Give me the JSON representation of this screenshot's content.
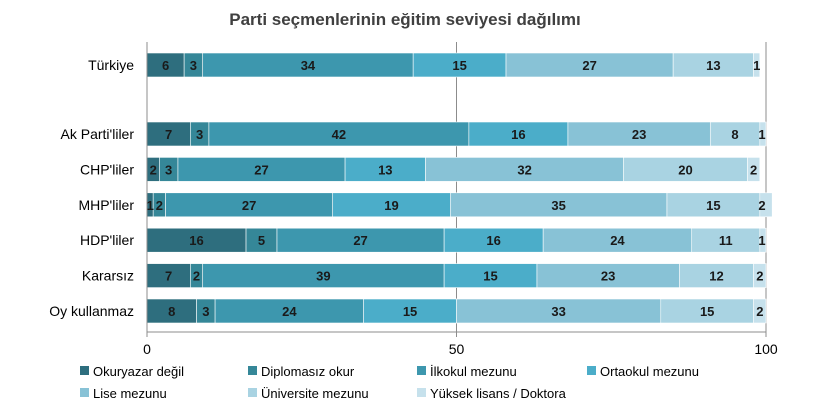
{
  "chart_data": {
    "type": "bar",
    "orientation": "horizontal",
    "stacked": true,
    "title": "Parti seçmenlerinin eğitim seviyesi dağılımı",
    "xlabel": "",
    "ylabel": "",
    "xlim": [
      0,
      100
    ],
    "xticks": [
      "0",
      "50",
      "100"
    ],
    "grid": "vertical lines at 50 and 100",
    "legend_position": "bottom",
    "categories": [
      "Türkiye",
      "Ak Parti'liler",
      "CHP'liler",
      "MHP'liler",
      "HDP'liler",
      "Kararsız",
      "Oy kullanmaz"
    ],
    "gap_after_first_category": true,
    "series": [
      {
        "name": "Okuryazar değil",
        "color": "#2E6E7E",
        "values": [
          6,
          7,
          2,
          1,
          16,
          7,
          8
        ]
      },
      {
        "name": "Diplomasız okur",
        "color": "#358798",
        "values": [
          3,
          3,
          3,
          2,
          5,
          2,
          3
        ]
      },
      {
        "name": "İlkokul mezunu",
        "color": "#3D97AE",
        "values": [
          34,
          42,
          27,
          27,
          27,
          39,
          24
        ]
      },
      {
        "name": "Ortaokul mezunu",
        "color": "#4BADC9",
        "values": [
          15,
          16,
          13,
          19,
          16,
          15,
          15
        ]
      },
      {
        "name": "Lise mezunu",
        "color": "#88C2D6",
        "values": [
          27,
          23,
          32,
          35,
          24,
          23,
          33
        ]
      },
      {
        "name": "Üniversite mezunu",
        "color": "#A9D3E2",
        "values": [
          13,
          8,
          20,
          15,
          11,
          12,
          15
        ]
      },
      {
        "name": "Yüksek lisans / Doktora",
        "color": "#C6E1EC",
        "values": [
          1,
          1,
          2,
          2,
          1,
          2,
          2
        ]
      }
    ],
    "data_labels": [
      [
        "6",
        "3",
        "34",
        "15",
        "27",
        "13",
        "1"
      ],
      [
        "7",
        "3",
        "42",
        "16",
        "23",
        "8",
        "1"
      ],
      [
        "2",
        "3",
        "27",
        "13",
        "32",
        "20",
        "2"
      ],
      [
        "1",
        "2",
        "27",
        "19",
        "35",
        "15",
        "2"
      ],
      [
        "16",
        "5",
        "27",
        "16",
        "24",
        "11",
        "1"
      ],
      [
        "7",
        "2",
        "39",
        "15",
        "23",
        "12",
        "2"
      ],
      [
        "8",
        "3",
        "24",
        "15",
        "33",
        "15",
        "2"
      ]
    ]
  }
}
